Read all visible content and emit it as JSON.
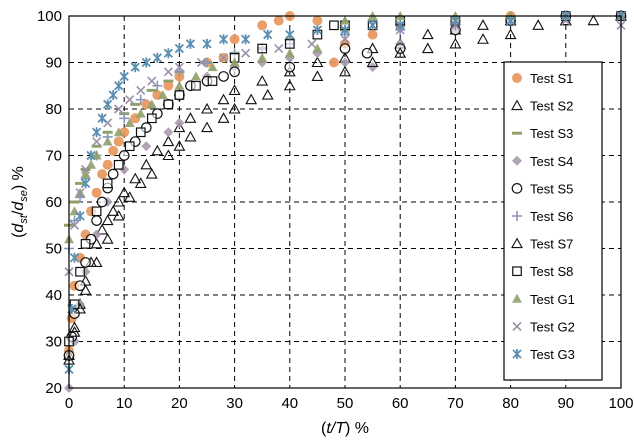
{
  "chart_data": {
    "type": "scatter",
    "title": "",
    "xlabel": {
      "prefix": "(",
      "var": "t/T",
      "suffix": ") %"
    },
    "ylabel": {
      "prefix": "(",
      "num": "d",
      "num_sub": "st",
      "sep": "/",
      "den": "d",
      "den_sub": "se",
      "suffix": ") %"
    },
    "xlim": [
      0,
      100
    ],
    "ylim": [
      20,
      100
    ],
    "xticks": [
      0,
      10,
      20,
      30,
      40,
      50,
      60,
      70,
      80,
      90,
      100
    ],
    "yticks": [
      20,
      30,
      40,
      50,
      60,
      70,
      80,
      90,
      100
    ],
    "grid": true,
    "legend_position": "right",
    "series": [
      {
        "name": "Test S1",
        "marker": "circle-filled",
        "color": "#E8955A",
        "points": [
          [
            0,
            28
          ],
          [
            0.5,
            35
          ],
          [
            1,
            42
          ],
          [
            2,
            48
          ],
          [
            3,
            53
          ],
          [
            4,
            58
          ],
          [
            5,
            62
          ],
          [
            6,
            66
          ],
          [
            7,
            68
          ],
          [
            8,
            71
          ],
          [
            9,
            73
          ],
          [
            10,
            75
          ],
          [
            12,
            78
          ],
          [
            14,
            81
          ],
          [
            16,
            83
          ],
          [
            18,
            85
          ],
          [
            20,
            87
          ],
          [
            25,
            90
          ],
          [
            28,
            91
          ],
          [
            30,
            95
          ],
          [
            35,
            98
          ],
          [
            38,
            99
          ],
          [
            40,
            100
          ],
          [
            45,
            99
          ],
          [
            48,
            90
          ],
          [
            50,
            94
          ],
          [
            55,
            96
          ],
          [
            60,
            98
          ],
          [
            70,
            99
          ],
          [
            80,
            100
          ],
          [
            90,
            100
          ],
          [
            100,
            100
          ]
        ]
      },
      {
        "name": "Test S2",
        "marker": "triangle-open",
        "color": "#111111",
        "points": [
          [
            0,
            27
          ],
          [
            1,
            33
          ],
          [
            2,
            38
          ],
          [
            3,
            43
          ],
          [
            4,
            47
          ],
          [
            5,
            51
          ],
          [
            6,
            54
          ],
          [
            7,
            56
          ],
          [
            8,
            58
          ],
          [
            9,
            60
          ],
          [
            10,
            62
          ],
          [
            12,
            65
          ],
          [
            14,
            68
          ],
          [
            16,
            71
          ],
          [
            18,
            73
          ],
          [
            20,
            76
          ],
          [
            22,
            78
          ],
          [
            25,
            80
          ],
          [
            28,
            82
          ],
          [
            30,
            84
          ],
          [
            35,
            86
          ],
          [
            40,
            88
          ],
          [
            45,
            90
          ],
          [
            50,
            91
          ],
          [
            55,
            93
          ],
          [
            60,
            94
          ],
          [
            65,
            96
          ],
          [
            70,
            97
          ],
          [
            75,
            98
          ],
          [
            80,
            99
          ],
          [
            90,
            99
          ],
          [
            100,
            100
          ]
        ]
      },
      {
        "name": "Test S3",
        "marker": "dash",
        "color": "#8FA06A",
        "points": [
          [
            0,
            55
          ],
          [
            1,
            60
          ],
          [
            2,
            64
          ],
          [
            3,
            67
          ],
          [
            5,
            72
          ],
          [
            7,
            75
          ],
          [
            10,
            79
          ],
          [
            12,
            81
          ],
          [
            15,
            84
          ],
          [
            18,
            86
          ],
          [
            20,
            88
          ],
          [
            25,
            90
          ],
          [
            30,
            92
          ],
          [
            35,
            93
          ],
          [
            40,
            95
          ],
          [
            50,
            97
          ],
          [
            60,
            98
          ],
          [
            70,
            99
          ],
          [
            80,
            99
          ],
          [
            90,
            100
          ],
          [
            100,
            100
          ]
        ]
      },
      {
        "name": "Test S4",
        "marker": "diamond-filled",
        "color": "#A89AAF",
        "points": [
          [
            0,
            20
          ],
          [
            1,
            30
          ],
          [
            2,
            38
          ],
          [
            3,
            45
          ],
          [
            5,
            53
          ],
          [
            7,
            60
          ],
          [
            10,
            67
          ],
          [
            14,
            72
          ],
          [
            18,
            75
          ],
          [
            20,
            77
          ],
          [
            25,
            87
          ],
          [
            30,
            89
          ],
          [
            35,
            90
          ],
          [
            40,
            91
          ],
          [
            45,
            92
          ],
          [
            50,
            90
          ],
          [
            55,
            89
          ],
          [
            60,
            94
          ],
          [
            70,
            97
          ],
          [
            80,
            99
          ],
          [
            90,
            100
          ],
          [
            100,
            100
          ]
        ]
      },
      {
        "name": "Test S5",
        "marker": "circle-open",
        "color": "#111111",
        "points": [
          [
            0,
            27
          ],
          [
            0.5,
            31
          ],
          [
            1,
            36
          ],
          [
            2,
            42
          ],
          [
            3,
            47
          ],
          [
            4,
            52
          ],
          [
            5,
            56
          ],
          [
            6,
            60
          ],
          [
            7,
            63
          ],
          [
            8,
            66
          ],
          [
            10,
            70
          ],
          [
            12,
            73
          ],
          [
            14,
            76
          ],
          [
            16,
            79
          ],
          [
            18,
            81
          ],
          [
            20,
            83
          ],
          [
            22,
            85
          ],
          [
            25,
            86
          ],
          [
            28,
            87
          ],
          [
            30,
            88
          ],
          [
            40,
            89
          ],
          [
            50,
            93
          ],
          [
            54,
            92
          ],
          [
            60,
            93
          ],
          [
            70,
            97
          ],
          [
            80,
            99
          ],
          [
            90,
            100
          ],
          [
            100,
            100
          ]
        ]
      },
      {
        "name": "Test S6",
        "marker": "plus",
        "color": "#8A96C0",
        "points": [
          [
            0,
            50
          ],
          [
            1,
            56
          ],
          [
            2,
            61
          ],
          [
            3,
            65
          ],
          [
            5,
            70
          ],
          [
            7,
            74
          ],
          [
            10,
            78
          ],
          [
            13,
            82
          ],
          [
            16,
            85
          ],
          [
            20,
            88
          ],
          [
            25,
            90
          ],
          [
            30,
            92
          ],
          [
            35,
            93
          ],
          [
            40,
            94
          ],
          [
            50,
            96
          ],
          [
            60,
            97
          ],
          [
            70,
            98
          ],
          [
            80,
            99
          ],
          [
            90,
            100
          ],
          [
            100,
            100
          ]
        ]
      },
      {
        "name": "Test S7",
        "marker": "triangle-open",
        "color": "#111111",
        "points": [
          [
            0,
            26
          ],
          [
            1,
            32
          ],
          [
            2,
            37
          ],
          [
            3,
            41
          ],
          [
            5,
            47
          ],
          [
            7,
            52
          ],
          [
            9,
            57
          ],
          [
            11,
            61
          ],
          [
            13,
            64
          ],
          [
            15,
            66
          ],
          [
            18,
            70
          ],
          [
            20,
            72
          ],
          [
            22,
            74
          ],
          [
            25,
            76
          ],
          [
            28,
            78
          ],
          [
            30,
            80
          ],
          [
            33,
            82
          ],
          [
            36,
            83
          ],
          [
            40,
            85
          ],
          [
            45,
            87
          ],
          [
            50,
            88
          ],
          [
            55,
            90
          ],
          [
            60,
            92
          ],
          [
            65,
            93
          ],
          [
            70,
            94
          ],
          [
            75,
            95
          ],
          [
            80,
            96
          ],
          [
            85,
            98
          ],
          [
            90,
            99
          ],
          [
            95,
            99
          ],
          [
            100,
            100
          ]
        ]
      },
      {
        "name": "Test S8",
        "marker": "square-open",
        "color": "#111111",
        "points": [
          [
            0,
            30
          ],
          [
            1,
            38
          ],
          [
            2,
            45
          ],
          [
            3,
            51
          ],
          [
            5,
            58
          ],
          [
            7,
            64
          ],
          [
            9,
            68
          ],
          [
            11,
            72
          ],
          [
            13,
            75
          ],
          [
            15,
            78
          ],
          [
            18,
            81
          ],
          [
            20,
            83
          ],
          [
            23,
            85
          ],
          [
            26,
            86
          ],
          [
            30,
            91
          ],
          [
            35,
            93
          ],
          [
            40,
            94
          ],
          [
            45,
            96
          ],
          [
            48,
            98
          ],
          [
            50,
            98
          ],
          [
            55,
            98
          ],
          [
            60,
            99
          ],
          [
            70,
            99
          ],
          [
            80,
            99
          ],
          [
            90,
            100
          ],
          [
            100,
            100
          ]
        ]
      },
      {
        "name": "Test G1",
        "marker": "triangle-filled",
        "color": "#8FA06A",
        "points": [
          [
            0,
            52
          ],
          [
            1,
            58
          ],
          [
            2,
            62
          ],
          [
            3,
            66
          ],
          [
            4,
            68
          ],
          [
            5,
            70
          ],
          [
            7,
            73
          ],
          [
            9,
            75
          ],
          [
            11,
            77
          ],
          [
            13,
            79
          ],
          [
            15,
            81
          ],
          [
            17,
            83
          ],
          [
            20,
            85
          ],
          [
            23,
            87
          ],
          [
            26,
            89
          ],
          [
            30,
            90
          ],
          [
            35,
            91
          ],
          [
            40,
            92
          ],
          [
            45,
            93
          ],
          [
            50,
            99
          ],
          [
            55,
            100
          ],
          [
            60,
            100
          ],
          [
            70,
            100
          ],
          [
            80,
            100
          ],
          [
            90,
            100
          ],
          [
            100,
            100
          ]
        ]
      },
      {
        "name": "Test G2",
        "marker": "x",
        "color": "#9C8FA8",
        "points": [
          [
            0,
            45
          ],
          [
            1,
            55
          ],
          [
            2,
            62
          ],
          [
            3,
            67
          ],
          [
            4,
            70
          ],
          [
            5,
            73
          ],
          [
            7,
            77
          ],
          [
            9,
            80
          ],
          [
            11,
            82
          ],
          [
            13,
            84
          ],
          [
            15,
            86
          ],
          [
            18,
            88
          ],
          [
            20,
            89
          ],
          [
            24,
            90
          ],
          [
            28,
            91
          ],
          [
            32,
            92
          ],
          [
            38,
            93
          ],
          [
            44,
            94
          ],
          [
            50,
            95
          ],
          [
            60,
            97
          ],
          [
            70,
            98
          ],
          [
            80,
            99
          ],
          [
            90,
            99
          ],
          [
            100,
            98
          ]
        ]
      },
      {
        "name": "Test G3",
        "marker": "asterisk",
        "color": "#5B8EB0",
        "points": [
          [
            0,
            24
          ],
          [
            0.5,
            37
          ],
          [
            1,
            48
          ],
          [
            2,
            57
          ],
          [
            3,
            64
          ],
          [
            4,
            70
          ],
          [
            5,
            75
          ],
          [
            6,
            78
          ],
          [
            7,
            81
          ],
          [
            8,
            83
          ],
          [
            9,
            85
          ],
          [
            10,
            87
          ],
          [
            12,
            89
          ],
          [
            14,
            90
          ],
          [
            16,
            91
          ],
          [
            18,
            92
          ],
          [
            20,
            93
          ],
          [
            22,
            94
          ],
          [
            25,
            94
          ],
          [
            28,
            95
          ],
          [
            32,
            95
          ],
          [
            36,
            96
          ],
          [
            40,
            96
          ],
          [
            45,
            97
          ],
          [
            50,
            97
          ],
          [
            55,
            98
          ],
          [
            60,
            98
          ],
          [
            70,
            99
          ],
          [
            80,
            99
          ],
          [
            90,
            100
          ],
          [
            100,
            100
          ]
        ]
      }
    ]
  }
}
